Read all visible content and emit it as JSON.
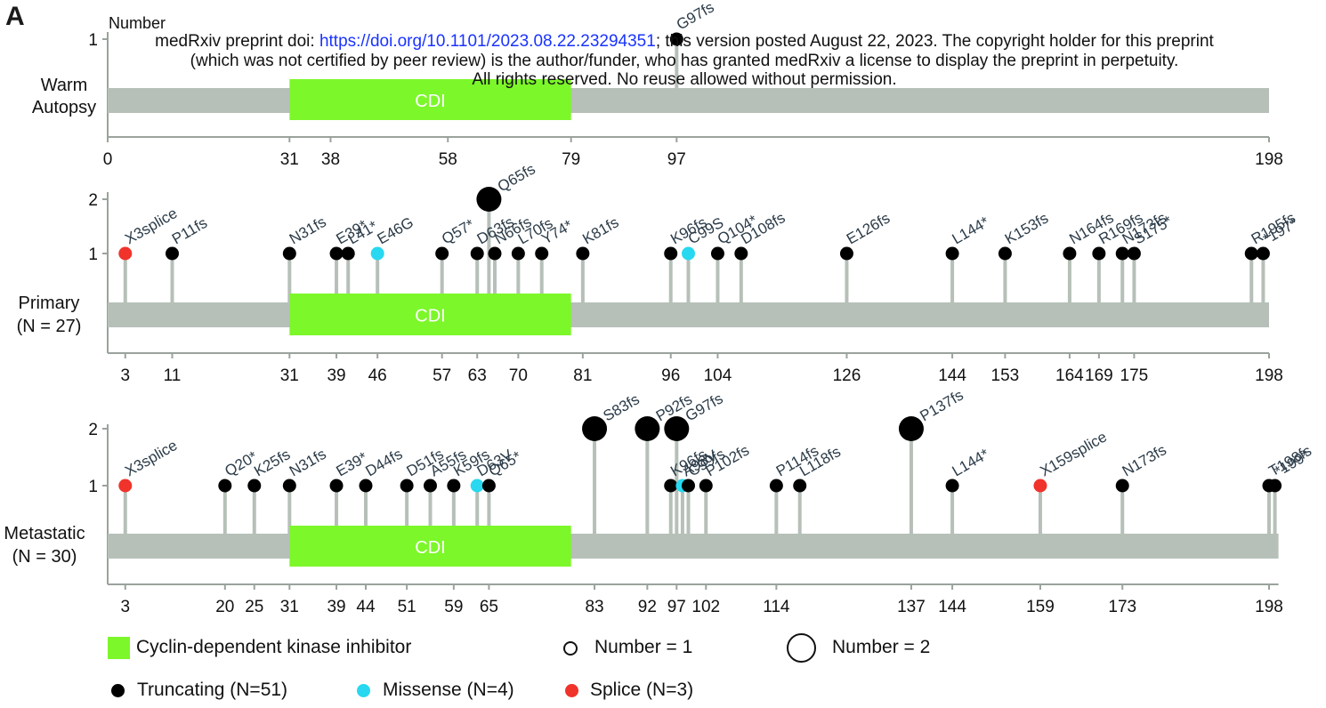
{
  "panel_letter": "A",
  "header": {
    "line1_prefix": "medRxiv preprint doi: ",
    "line1_link": "https://doi.org/10.1101/2023.08.22.23294351",
    "line1_suffix": "; this version posted August 22, 2023. The copyright holder for this preprint",
    "line2": "(which was not certified by peer review) is the author/funder, who has granted medRxiv a license to display the preprint in perpetuity.",
    "line3": "All rights reserved. No reuse allowed without permission."
  },
  "legend": {
    "domain_label": "Cyclin-dependent kinase inhibitor",
    "number1_label": "Number = 1",
    "number2_label": "Number = 2",
    "truncating_label": "Truncating (N=51)",
    "missense_label": "Missense (N=4)",
    "splice_label": "Splice (N=3)"
  },
  "colors": {
    "domain": "#7cf72a",
    "protein_bar": "#b6c0b8",
    "stem": "#b6c0b8",
    "truncating": "#000000",
    "missense": "#27d8f0",
    "splice": "#f0332b",
    "axis": "#9aa39c"
  },
  "chart_data": [
    {
      "type": "lollipop",
      "row_label": [
        "Warm",
        "Autopsy"
      ],
      "ylabel": "Number",
      "y_ticks": [
        1
      ],
      "protein_length": 198,
      "domain": {
        "label": "CDI",
        "start": 31,
        "end": 79
      },
      "x_ticks": [
        0,
        31,
        38,
        58,
        79,
        97,
        198
      ],
      "mutations": [
        {
          "label": "G97fs",
          "pos": 97,
          "count": 1,
          "type": "truncating"
        }
      ]
    },
    {
      "type": "lollipop",
      "row_label": [
        "Primary",
        "(N = 27)"
      ],
      "ylabel": "",
      "y_ticks": [
        1,
        2
      ],
      "protein_length": 198,
      "domain": {
        "label": "CDI",
        "start": 31,
        "end": 79
      },
      "x_ticks": [
        3,
        11,
        31,
        39,
        46,
        57,
        63,
        70,
        81,
        96,
        104,
        126,
        144,
        153,
        164,
        169,
        175,
        198
      ],
      "mutations": [
        {
          "label": "X3splice",
          "pos": 3,
          "count": 1,
          "type": "splice"
        },
        {
          "label": "P11fs",
          "pos": 11,
          "count": 1,
          "type": "truncating"
        },
        {
          "label": "N31fs",
          "pos": 31,
          "count": 1,
          "type": "truncating"
        },
        {
          "label": "E39*",
          "pos": 39,
          "count": 1,
          "type": "truncating"
        },
        {
          "label": "L41*",
          "pos": 41,
          "count": 1,
          "type": "truncating"
        },
        {
          "label": "E46G",
          "pos": 46,
          "count": 1,
          "type": "missense"
        },
        {
          "label": "Q57*",
          "pos": 57,
          "count": 1,
          "type": "truncating"
        },
        {
          "label": "D63fs",
          "pos": 63,
          "count": 1,
          "type": "truncating"
        },
        {
          "label": "Q65fs",
          "pos": 65,
          "count": 2,
          "type": "truncating"
        },
        {
          "label": "N66fs",
          "pos": 66,
          "count": 1,
          "type": "truncating"
        },
        {
          "label": "L70fs",
          "pos": 70,
          "count": 1,
          "type": "truncating"
        },
        {
          "label": "Y74*",
          "pos": 74,
          "count": 1,
          "type": "truncating"
        },
        {
          "label": "K81fs",
          "pos": 81,
          "count": 1,
          "type": "truncating"
        },
        {
          "label": "K96fs",
          "pos": 96,
          "count": 1,
          "type": "truncating"
        },
        {
          "label": "C99S",
          "pos": 99,
          "count": 1,
          "type": "missense"
        },
        {
          "label": "Q104*",
          "pos": 104,
          "count": 1,
          "type": "truncating"
        },
        {
          "label": "D108fs",
          "pos": 108,
          "count": 1,
          "type": "truncating"
        },
        {
          "label": "E126fs",
          "pos": 126,
          "count": 1,
          "type": "truncating"
        },
        {
          "label": "L144*",
          "pos": 144,
          "count": 1,
          "type": "truncating"
        },
        {
          "label": "K153fs",
          "pos": 153,
          "count": 1,
          "type": "truncating"
        },
        {
          "label": "N164fs",
          "pos": 164,
          "count": 1,
          "type": "truncating"
        },
        {
          "label": "R169fs",
          "pos": 169,
          "count": 1,
          "type": "truncating"
        },
        {
          "label": "N173fs",
          "pos": 173,
          "count": 1,
          "type": "truncating"
        },
        {
          "label": "S175*",
          "pos": 175,
          "count": 1,
          "type": "truncating"
        },
        {
          "label": "R195fs",
          "pos": 195,
          "count": 1,
          "type": "truncating"
        },
        {
          "label": "*197*",
          "pos": 197,
          "count": 1,
          "type": "truncating"
        }
      ]
    },
    {
      "type": "lollipop",
      "row_label": [
        "Metastatic",
        "(N = 30)"
      ],
      "ylabel": "",
      "y_ticks": [
        1,
        2
      ],
      "protein_length": 199,
      "domain": {
        "label": "CDI",
        "start": 31,
        "end": 79
      },
      "x_ticks": [
        3,
        20,
        25,
        31,
        39,
        44,
        51,
        59,
        65,
        83,
        92,
        97,
        102,
        114,
        137,
        144,
        159,
        173,
        198
      ],
      "mutations": [
        {
          "label": "X3splice",
          "pos": 3,
          "count": 1,
          "type": "splice"
        },
        {
          "label": "Q20*",
          "pos": 20,
          "count": 1,
          "type": "truncating"
        },
        {
          "label": "K25fs",
          "pos": 25,
          "count": 1,
          "type": "truncating"
        },
        {
          "label": "N31fs",
          "pos": 31,
          "count": 1,
          "type": "truncating"
        },
        {
          "label": "E39*",
          "pos": 39,
          "count": 1,
          "type": "truncating"
        },
        {
          "label": "D44fs",
          "pos": 44,
          "count": 1,
          "type": "truncating"
        },
        {
          "label": "D51fs",
          "pos": 51,
          "count": 1,
          "type": "truncating"
        },
        {
          "label": "A55fs",
          "pos": 55,
          "count": 1,
          "type": "truncating"
        },
        {
          "label": "K59fs",
          "pos": 59,
          "count": 1,
          "type": "truncating"
        },
        {
          "label": "D63V",
          "pos": 63,
          "count": 1,
          "type": "missense"
        },
        {
          "label": "Q65*",
          "pos": 65,
          "count": 1,
          "type": "truncating"
        },
        {
          "label": "S83fs",
          "pos": 83,
          "count": 2,
          "type": "truncating"
        },
        {
          "label": "P92fs",
          "pos": 92,
          "count": 2,
          "type": "truncating"
        },
        {
          "label": "K96fs",
          "pos": 96,
          "count": 1,
          "type": "truncating"
        },
        {
          "label": "G97fs",
          "pos": 97,
          "count": 2,
          "type": "truncating"
        },
        {
          "label": "A98V",
          "pos": 98,
          "count": 1,
          "type": "missense"
        },
        {
          "label": "C99fs",
          "pos": 99,
          "count": 1,
          "type": "truncating"
        },
        {
          "label": "P102fs",
          "pos": 102,
          "count": 1,
          "type": "truncating"
        },
        {
          "label": "P114fs",
          "pos": 114,
          "count": 1,
          "type": "truncating"
        },
        {
          "label": "L118fs",
          "pos": 118,
          "count": 1,
          "type": "truncating"
        },
        {
          "label": "P137fs",
          "pos": 137,
          "count": 2,
          "type": "truncating"
        },
        {
          "label": "L144*",
          "pos": 144,
          "count": 1,
          "type": "truncating"
        },
        {
          "label": "X159splice",
          "pos": 159,
          "count": 1,
          "type": "splice"
        },
        {
          "label": "N173fs",
          "pos": 173,
          "count": 1,
          "type": "truncating"
        },
        {
          "label": "T198fs",
          "pos": 198,
          "count": 1,
          "type": "truncating"
        },
        {
          "label": "*199*",
          "pos": 199,
          "count": 1,
          "type": "truncating"
        }
      ]
    }
  ]
}
